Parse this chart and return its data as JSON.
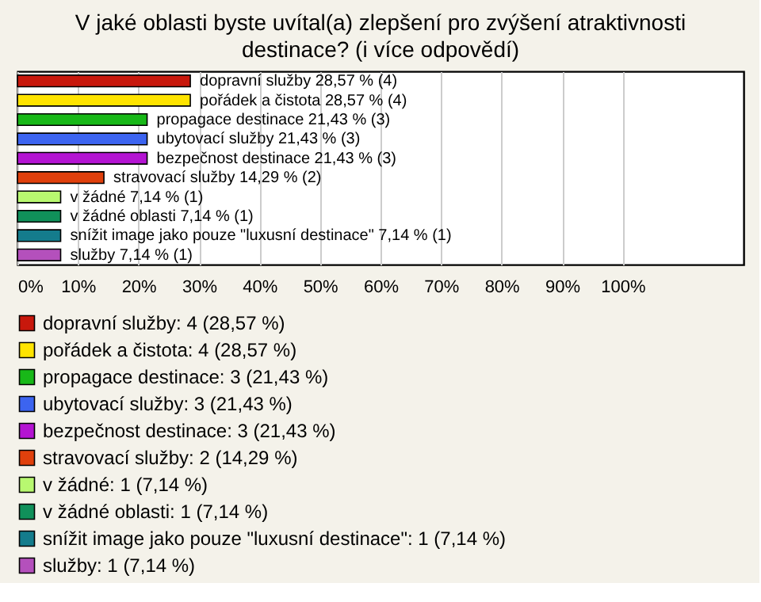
{
  "chart_data": {
    "type": "bar",
    "orientation": "horizontal",
    "title": "V jaké oblasti byste uvítal(a) zlepšení pro zvýšení atraktivnosti destinace? (i více odpovědí)",
    "categories": [
      "dopravní služby",
      "pořádek a čistota",
      "propagace destinace",
      "ubytovací služby",
      "bezpečnost destinace",
      "stravovací služby",
      "v žádné",
      "v žádné oblasti",
      "snížit image jako pouze \"luxusní destinace\"",
      "služby"
    ],
    "series": [
      {
        "name": "dopravní služby: 4 (28,57 %)",
        "color": "#c8180c",
        "values": [
          28.57,
          null,
          null,
          null,
          null,
          null,
          null,
          null,
          null,
          null
        ],
        "value_labels": [
          "28,57 % (4)",
          null,
          null,
          null,
          null,
          null,
          null,
          null,
          null,
          null
        ]
      },
      {
        "name": "pořádek a čistota: 4 (28,57 %)",
        "color": "#ffe400",
        "values": [
          null,
          28.57,
          null,
          null,
          null,
          null,
          null,
          null,
          null,
          null
        ],
        "value_labels": [
          null,
          "28,57 % (4)",
          null,
          null,
          null,
          null,
          null,
          null,
          null,
          null
        ]
      },
      {
        "name": "propagace destinace: 3 (21,43 %)",
        "color": "#18b818",
        "values": [
          null,
          null,
          21.43,
          null,
          null,
          null,
          null,
          null,
          null,
          null
        ],
        "value_labels": [
          null,
          null,
          "21,43 % (3)",
          null,
          null,
          null,
          null,
          null,
          null,
          null
        ]
      },
      {
        "name": "ubytovací služby: 3 (21,43 %)",
        "color": "#3c64f0",
        "values": [
          null,
          null,
          null,
          21.43,
          null,
          null,
          null,
          null,
          null,
          null
        ],
        "value_labels": [
          null,
          null,
          null,
          "21,43 % (3)",
          null,
          null,
          null,
          null,
          null,
          null
        ]
      },
      {
        "name": "bezpečnost destinace: 3 (21,43 %)",
        "color": "#b414d2",
        "values": [
          null,
          null,
          null,
          null,
          21.43,
          null,
          null,
          null,
          null,
          null
        ],
        "value_labels": [
          null,
          null,
          null,
          null,
          "21,43 % (3)",
          null,
          null,
          null,
          null,
          null
        ]
      },
      {
        "name": "stravovací služby: 2 (14,29 %)",
        "color": "#e0400c",
        "values": [
          null,
          null,
          null,
          null,
          null,
          14.29,
          null,
          null,
          null,
          null
        ],
        "value_labels": [
          null,
          null,
          null,
          null,
          null,
          "14,29 % (2)",
          null,
          null,
          null,
          null
        ]
      },
      {
        "name": "v žádné: 1 (7,14 %)",
        "color": "#b8f870",
        "values": [
          null,
          null,
          null,
          null,
          null,
          null,
          7.14,
          null,
          null,
          null
        ],
        "value_labels": [
          null,
          null,
          null,
          null,
          null,
          null,
          "7,14 % (1)",
          null,
          null,
          null
        ]
      },
      {
        "name": "v žádné oblasti: 1 (7,14 %)",
        "color": "#10905a",
        "values": [
          null,
          null,
          null,
          null,
          null,
          null,
          null,
          7.14,
          null,
          null
        ],
        "value_labels": [
          null,
          null,
          null,
          null,
          null,
          null,
          null,
          "7,14 % (1)",
          null,
          null
        ]
      },
      {
        "name": "snížit image jako pouze \"luxusní destinace\": 1 (7,14 %)",
        "color": "#147c8c",
        "values": [
          null,
          null,
          null,
          null,
          null,
          null,
          null,
          null,
          7.14,
          null
        ],
        "value_labels": [
          null,
          null,
          null,
          null,
          null,
          null,
          null,
          null,
          "7,14 % (1)",
          null
        ]
      },
      {
        "name": "služby: 1 (7,14 %)",
        "color": "#b450bc",
        "values": [
          null,
          null,
          null,
          null,
          null,
          null,
          null,
          null,
          null,
          7.14
        ],
        "value_labels": [
          null,
          null,
          null,
          null,
          null,
          null,
          null,
          null,
          null,
          "7,14 % (1)"
        ]
      }
    ],
    "xlim": [
      0,
      120
    ],
    "xticks": [
      {
        "value": 0,
        "label": "0%"
      },
      {
        "value": 10,
        "label": "10%"
      },
      {
        "value": 20,
        "label": "20%"
      },
      {
        "value": 30,
        "label": "30%"
      },
      {
        "value": 40,
        "label": "40%"
      },
      {
        "value": 50,
        "label": "50%"
      },
      {
        "value": 60,
        "label": "60%"
      },
      {
        "value": 70,
        "label": "70%"
      },
      {
        "value": 80,
        "label": "80%"
      },
      {
        "value": 90,
        "label": "90%"
      },
      {
        "value": 100,
        "label": "100%"
      }
    ],
    "grid": "x",
    "legend": "bottom",
    "tick_labels": "x"
  }
}
